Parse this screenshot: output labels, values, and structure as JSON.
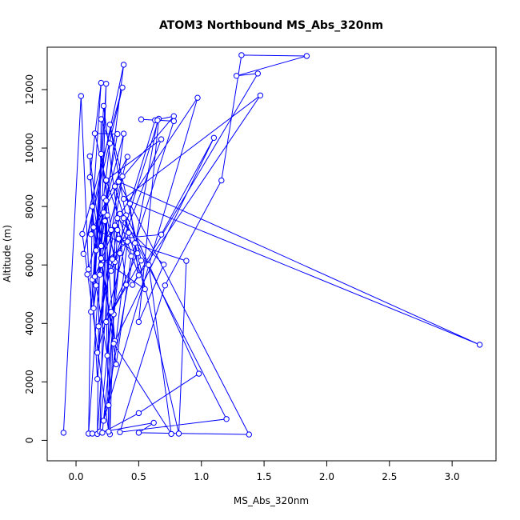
{
  "chart_data": {
    "type": "line",
    "title": "ATOM3 Northbound MS_Abs_320nm",
    "xlabel": "MS_Abs_320nm",
    "ylabel": "Altitude (m)",
    "xlim": [
      -0.23,
      3.35
    ],
    "ylim": [
      -700,
      13450
    ],
    "xticks": [
      0.0,
      0.5,
      1.0,
      1.5,
      2.0,
      2.5,
      3.0
    ],
    "xtick_labels": [
      "0.0",
      "0.5",
      "1.0",
      "1.5",
      "2.0",
      "2.5",
      "3.0"
    ],
    "yticks": [
      0,
      2000,
      4000,
      6000,
      8000,
      10000,
      12000
    ],
    "ytick_labels": [
      "0",
      "2000",
      "4000",
      "6000",
      "8000",
      "10000",
      "12000"
    ],
    "grid": false,
    "legend": "none",
    "color": "#0000ff",
    "series": [
      {
        "points": [
          [
            -0.1,
            260
          ],
          [
            0.04,
            11780
          ],
          [
            0.1,
            5850
          ],
          [
            0.22,
            7800
          ],
          [
            0.1,
            230
          ],
          [
            0.13,
            8000
          ],
          [
            0.16,
            6500
          ],
          [
            0.12,
            4400
          ],
          [
            0.2,
            9800
          ],
          [
            0.28,
            7200
          ],
          [
            0.17,
            220
          ],
          [
            0.2,
            10990
          ],
          [
            0.27,
            10160
          ],
          [
            0.22,
            8300
          ],
          [
            0.31,
            6100
          ],
          [
            0.35,
            6400
          ],
          [
            0.25,
            2900
          ],
          [
            0.16,
            5300
          ],
          [
            0.11,
            9720
          ],
          [
            0.2,
            6650
          ],
          [
            0.31,
            7350
          ],
          [
            0.3,
            4310
          ],
          [
            0.27,
            210
          ],
          [
            0.24,
            8870
          ],
          [
            0.15,
            10500
          ],
          [
            0.33,
            10480
          ],
          [
            0.13,
            5500
          ],
          [
            0.17,
            2100
          ],
          [
            0.25,
            7700
          ],
          [
            0.19,
            5670
          ],
          [
            0.24,
            12200
          ],
          [
            0.14,
            4520
          ],
          [
            0.38,
            12850
          ],
          [
            0.06,
            6380
          ],
          [
            0.37,
            12070
          ],
          [
            0.05,
            7060
          ],
          [
            0.26,
            300
          ],
          [
            0.23,
            7500
          ],
          [
            0.31,
            3400
          ],
          [
            0.2,
            6000
          ],
          [
            0.41,
            6800
          ],
          [
            0.26,
            1200
          ],
          [
            0.33,
            7200
          ],
          [
            0.44,
            6300
          ],
          [
            0.32,
            2600
          ],
          [
            0.11,
            9000
          ],
          [
            0.2,
            12230
          ],
          [
            0.12,
            7050
          ],
          [
            0.37,
            9030
          ],
          [
            0.18,
            3900
          ],
          [
            0.29,
            6200
          ],
          [
            0.35,
            7750
          ],
          [
            0.15,
            5600
          ],
          [
            0.22,
            11440
          ],
          [
            0.4,
            5320
          ],
          [
            0.28,
            4400
          ],
          [
            0.19,
            300
          ],
          [
            0.24,
            8200
          ],
          [
            0.09,
            5680
          ],
          [
            0.38,
            10490
          ],
          [
            0.17,
            3000
          ],
          [
            0.42,
            7100
          ],
          [
            0.27,
            10800
          ],
          [
            0.52,
            6150
          ],
          [
            0.24,
            4050
          ],
          [
            0.49,
            6400
          ],
          [
            0.14,
            7290
          ],
          [
            0.41,
            9700
          ],
          [
            0.2,
            6230
          ],
          [
            0.55,
            5170
          ],
          [
            0.31,
            8690
          ],
          [
            0.78,
            11090
          ],
          [
            0.63,
            10950
          ],
          [
            0.43,
            8100
          ],
          [
            0.5,
            5650
          ],
          [
            0.24,
            8900
          ],
          [
            0.68,
            10300
          ],
          [
            0.28,
            5800
          ],
          [
            0.66,
            11000
          ],
          [
            0.5,
            4050
          ],
          [
            0.7,
            6010
          ],
          [
            0.33,
            7600
          ],
          [
            0.97,
            11720
          ],
          [
            0.22,
            670
          ],
          [
            0.65,
            10950
          ],
          [
            0.52,
            10980
          ],
          [
            0.78,
            10920
          ],
          [
            0.47,
            6750
          ],
          [
            0.82,
            230
          ],
          [
            0.88,
            6140
          ],
          [
            0.34,
            6900
          ],
          [
            0.68,
            7040
          ],
          [
            1.1,
            10350
          ],
          [
            0.3,
            3310
          ],
          [
            0.76,
            220
          ],
          [
            0.58,
            6000
          ],
          [
            0.4,
            7700
          ],
          [
            0.98,
            2280
          ],
          [
            0.5,
            930
          ],
          [
            0.21,
            260
          ],
          [
            0.38,
            7600
          ],
          [
            1.2,
            730
          ],
          [
            0.35,
            280
          ],
          [
            0.71,
            5300
          ],
          [
            1.16,
            8890
          ],
          [
            1.32,
            13180
          ],
          [
            1.84,
            13150
          ],
          [
            1.28,
            12470
          ],
          [
            1.45,
            12550
          ],
          [
            0.45,
            5320
          ],
          [
            1.47,
            11800
          ],
          [
            0.38,
            8260
          ],
          [
            3.22,
            3270
          ],
          [
            0.34,
            8850
          ],
          [
            1.38,
            200
          ],
          [
            0.5,
            260
          ],
          [
            0.62,
            600
          ],
          [
            0.13,
            230
          ]
        ]
      }
    ]
  }
}
